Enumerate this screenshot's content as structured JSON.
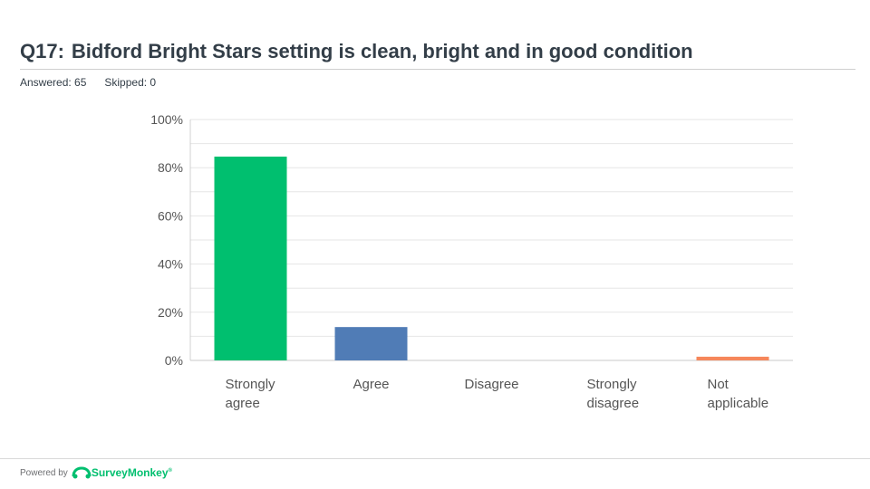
{
  "header": {
    "question_number": "Q17:",
    "title": "Bidford Bright Stars setting is clean, bright and in good condition",
    "answered_label": "Answered: 65",
    "skipped_label": "Skipped: 0"
  },
  "footer": {
    "powered_by": "Powered by",
    "brand": "SurveyMonkey"
  },
  "colors": {
    "strongly_agree": "#00bf6f",
    "agree": "#507cb6",
    "not_applicable": "#f6875b",
    "grid": "#e0e0e0"
  },
  "chart_data": {
    "type": "bar",
    "categories": [
      [
        "Strongly",
        "agree"
      ],
      [
        "Agree"
      ],
      [
        "Disagree"
      ],
      [
        "Strongly",
        "disagree"
      ],
      [
        "Not",
        "applicable"
      ]
    ],
    "values": [
      84.62,
      13.85,
      0,
      0,
      1.54
    ],
    "bar_colors": [
      "#00bf6f",
      "#507cb6",
      "#507cb6",
      "#507cb6",
      "#f6875b"
    ],
    "ylim": [
      0,
      100
    ],
    "yticks": [
      0,
      20,
      40,
      60,
      80,
      100
    ],
    "ytick_labels": [
      "0%",
      "20%",
      "40%",
      "60%",
      "80%",
      "100%"
    ],
    "grid": true,
    "xlabel": "",
    "ylabel": ""
  }
}
